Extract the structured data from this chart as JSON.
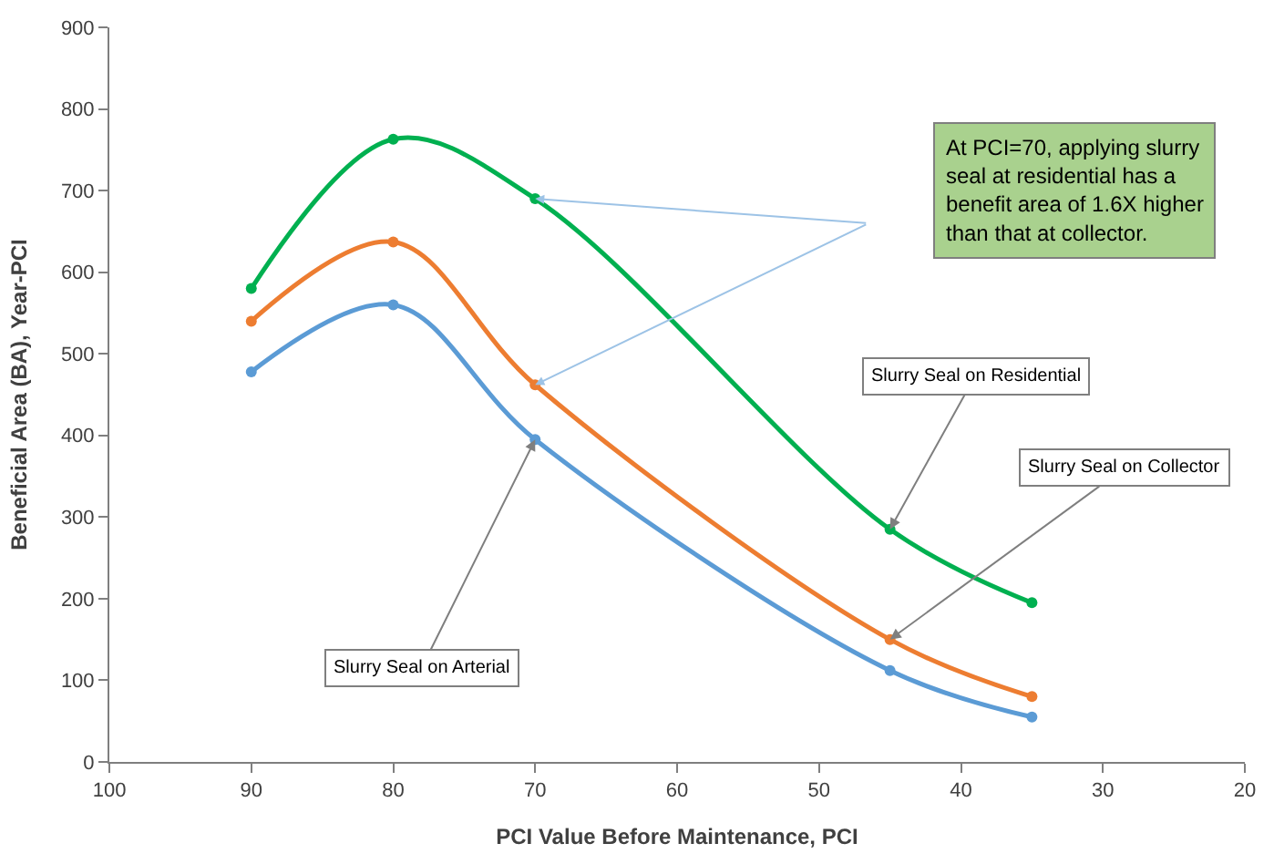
{
  "chart_data": {
    "type": "line",
    "xlabel": "PCI Value Before Maintenance, PCI",
    "ylabel": "Beneficial Area (BA), Year-PCI",
    "x": [
      90,
      80,
      70,
      45,
      35
    ],
    "series": [
      {
        "name": "Slurry Seal on Residential",
        "color": "#00b050",
        "values": [
          580,
          763,
          690,
          285,
          195
        ]
      },
      {
        "name": "Slurry Seal on Collector",
        "color": "#ed7d31",
        "values": [
          540,
          637,
          462,
          150,
          80
        ]
      },
      {
        "name": "Slurry Seal on Arterial",
        "color": "#5b9bd5",
        "values": [
          478,
          560,
          395,
          112,
          55
        ]
      }
    ],
    "annotations": [
      "At PCI=70, applying slurry seal at residential has a benefit area of 1.6X higher than that at collector."
    ],
    "xlim": [
      100,
      20
    ],
    "xticks": [
      100,
      90,
      80,
      70,
      60,
      50,
      40,
      30,
      20
    ],
    "ylim": [
      0,
      900
    ],
    "yticks": [
      0,
      100,
      200,
      300,
      400,
      500,
      600,
      700,
      800,
      900
    ],
    "legend": false,
    "marker": "circle",
    "line_style": "solid"
  }
}
